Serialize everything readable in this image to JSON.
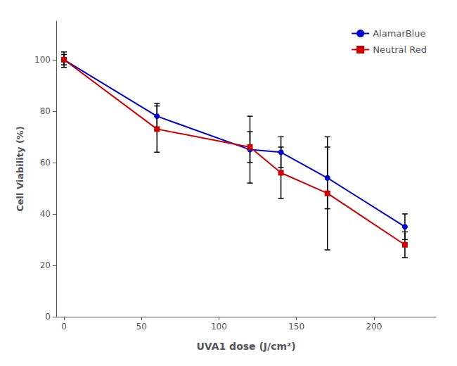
{
  "chart_data": {
    "type": "line",
    "xlabel": "UVA1 dose (J/cm²)",
    "ylabel": "Cell Viability (%)",
    "series": [
      {
        "name": "AlamarBlue",
        "color": "#0000cc",
        "marker": "circle",
        "x": [
          0,
          60,
          120,
          140,
          170,
          220
        ],
        "values": [
          100,
          78,
          65,
          64,
          54,
          35
        ],
        "errors": [
          3,
          5,
          13,
          6,
          12,
          5
        ]
      },
      {
        "name": "Neutral Red",
        "color": "#cc0000",
        "marker": "square",
        "x": [
          0,
          60,
          120,
          140,
          170,
          220
        ],
        "values": [
          100,
          73,
          66,
          56,
          48,
          28
        ],
        "errors": [
          2,
          9,
          6,
          10,
          22,
          5
        ]
      }
    ],
    "xlim": [
      -5,
      240
    ],
    "xticks": [
      0,
      50,
      100,
      150,
      200
    ],
    "ylim": [
      0,
      115
    ],
    "yticks": [
      0,
      20,
      40,
      60,
      80,
      100
    ],
    "grid": false,
    "legend": "upper right"
  }
}
